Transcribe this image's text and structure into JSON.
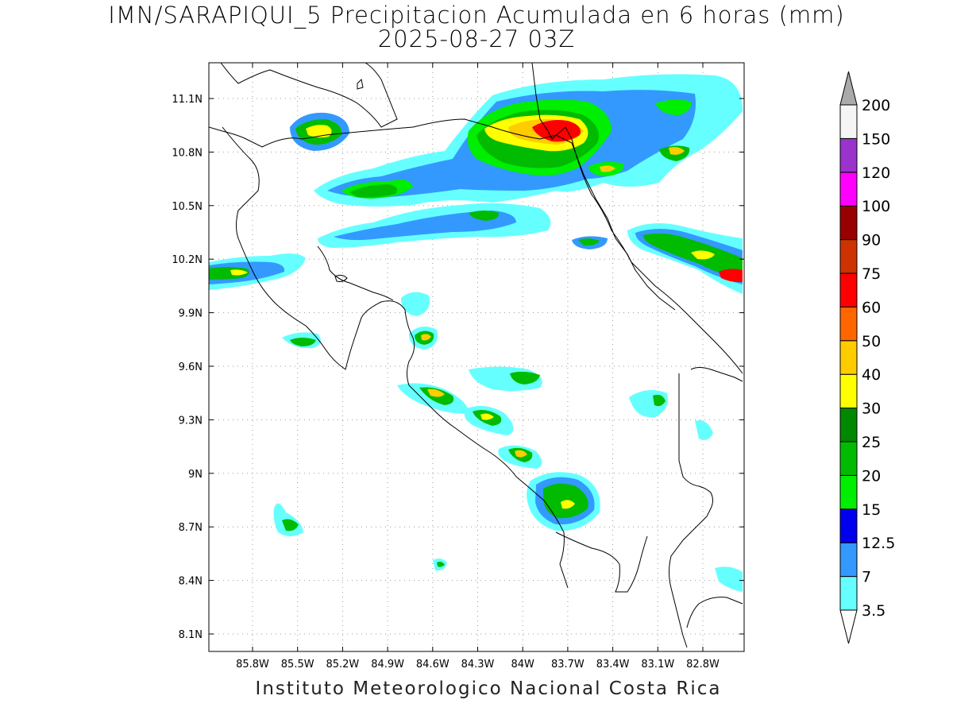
{
  "header": {
    "title": "IMN/SARAPIQUI_5 Precipitacion Acumulada en 6 horas (mm)",
    "date": "2025-08-27 03Z"
  },
  "footer": {
    "credit": "Instituto Meteorologico Nacional Costa Rica"
  },
  "map": {
    "lon_range": [
      -86.0,
      -83.0
    ],
    "lat_range": [
      8.0,
      11.3
    ],
    "lon_ticks": [
      {
        "value": -85.8,
        "label": "85.8W"
      },
      {
        "value": -85.5,
        "label": "85.5W"
      },
      {
        "value": -85.2,
        "label": "85.2W"
      },
      {
        "value": -84.9,
        "label": "84.9W"
      },
      {
        "value": -84.6,
        "label": "84.6W"
      },
      {
        "value": -84.3,
        "label": "84.3W"
      },
      {
        "value": -84.0,
        "label": "84W"
      },
      {
        "value": -83.7,
        "label": "83.7W"
      },
      {
        "value": -83.4,
        "label": "83.4W"
      },
      {
        "value": -83.1,
        "label": "83.1W"
      },
      {
        "value": -82.8,
        "label": "82.8W"
      }
    ],
    "lat_ticks": [
      {
        "value": 11.1,
        "label": "11.1N"
      },
      {
        "value": 10.8,
        "label": "10.8N"
      },
      {
        "value": 10.5,
        "label": "10.5N"
      },
      {
        "value": 10.2,
        "label": "10.2N"
      },
      {
        "value": 9.9,
        "label": "9.9N"
      },
      {
        "value": 9.6,
        "label": "9.6N"
      },
      {
        "value": 9.3,
        "label": "9.3N"
      },
      {
        "value": 9.0,
        "label": "9N"
      },
      {
        "value": 8.7,
        "label": "8.7N"
      },
      {
        "value": 8.4,
        "label": "8.4N"
      },
      {
        "value": 8.1,
        "label": "8.1N"
      }
    ],
    "grid": true
  },
  "legend": {
    "unit": "mm",
    "levels": [
      {
        "label": "3.5",
        "color": "#66ffff"
      },
      {
        "label": "7",
        "color": "#3399ff"
      },
      {
        "label": "12.5",
        "color": "#0000ee"
      },
      {
        "label": "15",
        "color": "#00ee00"
      },
      {
        "label": "20",
        "color": "#00bb00"
      },
      {
        "label": "25",
        "color": "#008800"
      },
      {
        "label": "30",
        "color": "#ffff00"
      },
      {
        "label": "40",
        "color": "#ffcc00"
      },
      {
        "label": "50",
        "color": "#ff6600"
      },
      {
        "label": "60",
        "color": "#ff0000"
      },
      {
        "label": "75",
        "color": "#cc3300"
      },
      {
        "label": "90",
        "color": "#990000"
      },
      {
        "label": "100",
        "color": "#ff00ff"
      },
      {
        "label": "120",
        "color": "#9933cc"
      },
      {
        "label": "150",
        "color": "#f5f5f5"
      },
      {
        "label": "200",
        "color": "#aaaaaa"
      }
    ]
  },
  "colors": {
    "c35": "#66ffff",
    "c7": "#3399ff",
    "c12": "#0000ee",
    "c15": "#00ee00",
    "c20": "#00bb00",
    "c25": "#008800",
    "c30": "#ffff00",
    "c40": "#ffcc00",
    "c60": "#ff0000",
    "coast": "#000000"
  }
}
